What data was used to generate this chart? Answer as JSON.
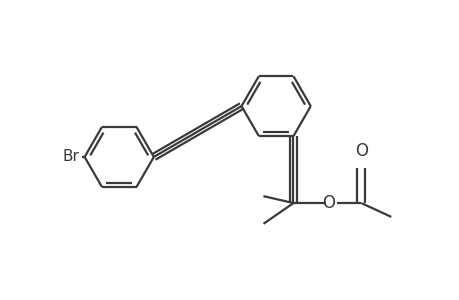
{
  "line_color": "#3a3a3a",
  "bg_color": "#ffffff",
  "lw": 1.6,
  "figsize": [
    4.6,
    3.0
  ],
  "dpi": 100,
  "xlim": [
    0.0,
    9.0
  ],
  "ylim": [
    0.0,
    6.5
  ]
}
